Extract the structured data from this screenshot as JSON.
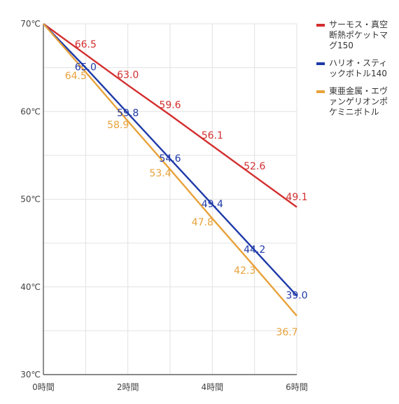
{
  "chart_data": {
    "type": "line",
    "x": [
      "0時間",
      "1時間",
      "2時間",
      "3時間",
      "4時間",
      "5時間",
      "6時間"
    ],
    "x_tick_labels": [
      "0時間",
      "2時間",
      "4時間",
      "6時間"
    ],
    "y_tick_labels": [
      "30℃",
      "40℃",
      "50℃",
      "60℃",
      "70℃"
    ],
    "ylim": [
      30,
      70
    ],
    "xlim": [
      0,
      6
    ],
    "grid": true,
    "legend_position": "right",
    "series": [
      {
        "name": "サーモス・真空断熱ポケットマグ150",
        "color": "#d32f2f",
        "values": [
          70,
          66.5,
          63.0,
          59.6,
          56.1,
          52.6,
          49.1
        ],
        "labels": [
          "",
          "66.5",
          "63.0",
          "59.6",
          "56.1",
          "52.6",
          "49.1"
        ]
      },
      {
        "name": "ハリオ・スティックボトル140",
        "color": "#1e3aa8",
        "values": [
          70,
          65.0,
          59.8,
          54.6,
          49.4,
          44.2,
          39.0
        ],
        "labels": [
          "",
          "65.0",
          "59.8",
          "54.6",
          "49.4",
          "44.2",
          "39.0"
        ]
      },
      {
        "name": "東亜金属・エヴァンゲリオンポケミニボトル",
        "color": "#e8a23a",
        "values": [
          70,
          64.5,
          58.9,
          53.4,
          47.8,
          42.3,
          36.7
        ],
        "labels": [
          "",
          "64.5",
          "58.9",
          "53.4",
          "47.8",
          "42.3",
          "36.7"
        ]
      }
    ]
  }
}
